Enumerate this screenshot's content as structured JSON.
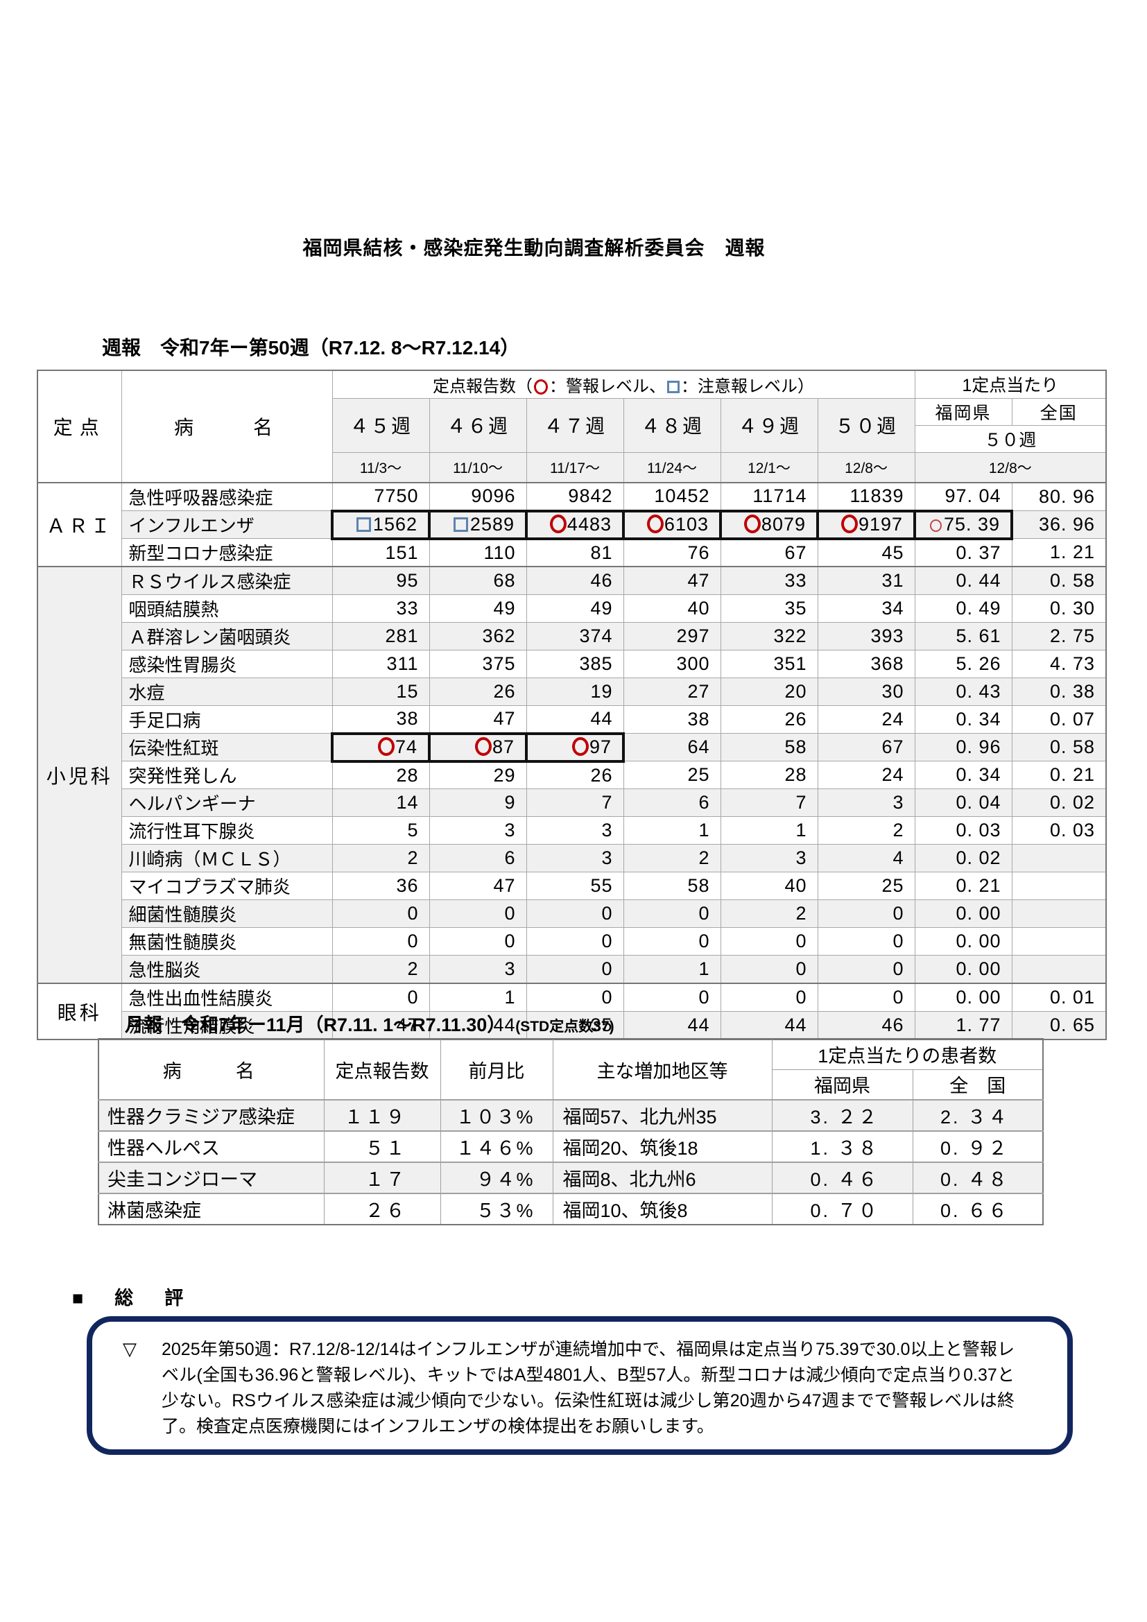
{
  "page_title": "福岡県結核・感染症発生動向調査解析委員会　週報",
  "weekly_table": {
    "subtitle": "週報　令和7年ー第50週（R7.12. 8～R7.12.14）",
    "header": {
      "sentinel": "定点",
      "disease": "病　　名",
      "counts_label": "定点報告数（",
      "legend_alert": "：警報レベル、",
      "legend_caution": "：注意報レベル）",
      "per_sentinel": "1定点当たり",
      "fukuoka": "福岡県",
      "national": "全国",
      "per_week": "５０週",
      "per_date": "12/8～",
      "weeks": [
        "４５週",
        "４６週",
        "４７週",
        "４８週",
        "４９週",
        "５０週"
      ],
      "dates": [
        "11/3～",
        "11/10～",
        "11/17～",
        "11/24～",
        "12/1～",
        "12/8～"
      ]
    },
    "legend_icons": {
      "alert": "red-circle",
      "caution": "blue-square"
    },
    "sections": [
      {
        "name": "ＡＲＩ",
        "rows": [
          {
            "name": "急性呼吸器感染症",
            "cells": [
              {
                "v": "7750"
              },
              {
                "v": "9096"
              },
              {
                "v": "9842"
              },
              {
                "v": "10452"
              },
              {
                "v": "11714"
              },
              {
                "v": "11839"
              },
              {
                "v": "97. 04"
              },
              {
                "v": "80. 96"
              }
            ]
          },
          {
            "name": "インフルエンザ",
            "cells": [
              {
                "v": "1562",
                "m": "square",
                "box": true
              },
              {
                "v": "2589",
                "m": "square",
                "box": true
              },
              {
                "v": "4483",
                "m": "circle",
                "box": true
              },
              {
                "v": "6103",
                "m": "circle",
                "box": true
              },
              {
                "v": "8079",
                "m": "circle",
                "box": true
              },
              {
                "v": "9197",
                "m": "circle",
                "box": true
              },
              {
                "v": "75. 39",
                "m": "circle-small",
                "box": true
              },
              {
                "v": "36. 96"
              }
            ]
          },
          {
            "name": "新型コロナ感染症",
            "cells": [
              {
                "v": "151"
              },
              {
                "v": "110"
              },
              {
                "v": "81"
              },
              {
                "v": "76"
              },
              {
                "v": "67"
              },
              {
                "v": "45"
              },
              {
                "v": "0. 37"
              },
              {
                "v": "1. 21"
              }
            ]
          }
        ]
      },
      {
        "name": "小児科",
        "rows": [
          {
            "name": "ＲＳウイルス感染症",
            "cells": [
              {
                "v": "95"
              },
              {
                "v": "68"
              },
              {
                "v": "46"
              },
              {
                "v": "47"
              },
              {
                "v": "33"
              },
              {
                "v": "31"
              },
              {
                "v": "0. 44"
              },
              {
                "v": "0. 58"
              }
            ]
          },
          {
            "name": "咽頭結膜熱",
            "cells": [
              {
                "v": "33"
              },
              {
                "v": "49"
              },
              {
                "v": "49"
              },
              {
                "v": "40"
              },
              {
                "v": "35"
              },
              {
                "v": "34"
              },
              {
                "v": "0. 49"
              },
              {
                "v": "0. 30"
              }
            ]
          },
          {
            "name": "Ａ群溶レン菌咽頭炎",
            "cells": [
              {
                "v": "281"
              },
              {
                "v": "362"
              },
              {
                "v": "374"
              },
              {
                "v": "297"
              },
              {
                "v": "322"
              },
              {
                "v": "393"
              },
              {
                "v": "5. 61"
              },
              {
                "v": "2. 75"
              }
            ]
          },
          {
            "name": "感染性胃腸炎",
            "cells": [
              {
                "v": "311"
              },
              {
                "v": "375"
              },
              {
                "v": "385"
              },
              {
                "v": "300"
              },
              {
                "v": "351"
              },
              {
                "v": "368"
              },
              {
                "v": "5. 26"
              },
              {
                "v": "4. 73"
              }
            ]
          },
          {
            "name": "水痘",
            "cells": [
              {
                "v": "15"
              },
              {
                "v": "26"
              },
              {
                "v": "19"
              },
              {
                "v": "27"
              },
              {
                "v": "20"
              },
              {
                "v": "30"
              },
              {
                "v": "0. 43"
              },
              {
                "v": "0. 38"
              }
            ]
          },
          {
            "name": "手足口病",
            "cells": [
              {
                "v": "38"
              },
              {
                "v": "47"
              },
              {
                "v": "44"
              },
              {
                "v": "38"
              },
              {
                "v": "26"
              },
              {
                "v": "24"
              },
              {
                "v": "0. 34"
              },
              {
                "v": "0. 07"
              }
            ]
          },
          {
            "name": "伝染性紅斑",
            "cells": [
              {
                "v": "74",
                "m": "circle",
                "box": true
              },
              {
                "v": "87",
                "m": "circle",
                "box": true
              },
              {
                "v": "97",
                "m": "circle",
                "box": true
              },
              {
                "v": "64"
              },
              {
                "v": "58"
              },
              {
                "v": "67"
              },
              {
                "v": "0. 96"
              },
              {
                "v": "0. 58"
              }
            ]
          },
          {
            "name": "突発性発しん",
            "cells": [
              {
                "v": "28"
              },
              {
                "v": "29"
              },
              {
                "v": "26"
              },
              {
                "v": "25"
              },
              {
                "v": "28"
              },
              {
                "v": "24"
              },
              {
                "v": "0. 34"
              },
              {
                "v": "0. 21"
              }
            ]
          },
          {
            "name": "ヘルパンギーナ",
            "cells": [
              {
                "v": "14"
              },
              {
                "v": "9"
              },
              {
                "v": "7"
              },
              {
                "v": "6"
              },
              {
                "v": "7"
              },
              {
                "v": "3"
              },
              {
                "v": "0. 04"
              },
              {
                "v": "0. 02"
              }
            ]
          },
          {
            "name": "流行性耳下腺炎",
            "cells": [
              {
                "v": "5"
              },
              {
                "v": "3"
              },
              {
                "v": "3"
              },
              {
                "v": "1"
              },
              {
                "v": "1"
              },
              {
                "v": "2"
              },
              {
                "v": "0. 03"
              },
              {
                "v": "0. 03"
              }
            ]
          },
          {
            "name": "川崎病（ＭＣＬＳ）",
            "cells": [
              {
                "v": "2"
              },
              {
                "v": "6"
              },
              {
                "v": "3"
              },
              {
                "v": "2"
              },
              {
                "v": "3"
              },
              {
                "v": "4"
              },
              {
                "v": "0. 02"
              },
              {
                "v": ""
              }
            ]
          },
          {
            "name": "マイコプラズマ肺炎",
            "cells": [
              {
                "v": "36"
              },
              {
                "v": "47"
              },
              {
                "v": "55"
              },
              {
                "v": "58"
              },
              {
                "v": "40"
              },
              {
                "v": "25"
              },
              {
                "v": "0. 21"
              },
              {
                "v": ""
              }
            ]
          },
          {
            "name": "細菌性髄膜炎",
            "cells": [
              {
                "v": "0"
              },
              {
                "v": "0"
              },
              {
                "v": "0"
              },
              {
                "v": "0"
              },
              {
                "v": "2"
              },
              {
                "v": "0"
              },
              {
                "v": "0. 00"
              },
              {
                "v": ""
              }
            ]
          },
          {
            "name": "無菌性髄膜炎",
            "cells": [
              {
                "v": "0"
              },
              {
                "v": "0"
              },
              {
                "v": "0"
              },
              {
                "v": "0"
              },
              {
                "v": "0"
              },
              {
                "v": "0"
              },
              {
                "v": "0. 00"
              },
              {
                "v": ""
              }
            ]
          },
          {
            "name": "急性脳炎",
            "cells": [
              {
                "v": "2"
              },
              {
                "v": "3"
              },
              {
                "v": "0"
              },
              {
                "v": "1"
              },
              {
                "v": "0"
              },
              {
                "v": "0"
              },
              {
                "v": "0. 00"
              },
              {
                "v": ""
              }
            ]
          }
        ]
      },
      {
        "name": "眼科",
        "rows": [
          {
            "name": "急性出血性結膜炎",
            "cells": [
              {
                "v": "0"
              },
              {
                "v": "1"
              },
              {
                "v": "0"
              },
              {
                "v": "0"
              },
              {
                "v": "0"
              },
              {
                "v": "0"
              },
              {
                "v": "0. 00"
              },
              {
                "v": "0. 01"
              }
            ]
          },
          {
            "name": "流行性角結膜炎",
            "cells": [
              {
                "v": "47"
              },
              {
                "v": "44"
              },
              {
                "v": "35"
              },
              {
                "v": "44"
              },
              {
                "v": "44"
              },
              {
                "v": "46"
              },
              {
                "v": "1. 77"
              },
              {
                "v": "0. 65"
              }
            ]
          }
        ]
      }
    ]
  },
  "monthly_table": {
    "subtitle": "月報　令和7年ー11月（R7.11. 1～R7.11.30）",
    "subtitle_note": "(STD定点数37)",
    "header": {
      "disease": "病　　名",
      "count": "定点報告数",
      "mom": "前月比",
      "areas": "主な増加地区等",
      "per_sentinel": "1定点当たりの患者数",
      "fukuoka": "福岡県",
      "national": "全　国"
    },
    "rows": [
      {
        "name": "性器クラミジア感染症",
        "count": "１１９",
        "mom": "１０３%",
        "areas": "福岡57、北九州35",
        "fukuoka": "3. ２２",
        "national": "2. ３４"
      },
      {
        "name": "性器ヘルペス",
        "count": "５１",
        "mom": "１４６%",
        "areas": "福岡20、筑後18",
        "fukuoka": "1. ３８",
        "national": "0. ９２"
      },
      {
        "name": "尖圭コンジローマ",
        "count": "１７",
        "mom": "９４%",
        "areas": "福岡8、北九州6",
        "fukuoka": "0. ４６",
        "national": "0. ４８"
      },
      {
        "name": "淋菌感染症",
        "count": "２６",
        "mom": "５３%",
        "areas": "福岡10、筑後8",
        "fukuoka": "0. ７０",
        "national": "0. ６６"
      }
    ]
  },
  "summary": {
    "heading": "■　総　評",
    "bullet": "▽",
    "lines": [
      "2025年第50週：R7.12/8-12/14はインフルエンザが連続増加中で、福岡県は定点当り75.39で30.0以上と",
      "警報レベル(全国も36.96と警報レベル)、キットではA型4801人、B型57人。新型コロナは減少傾向で定",
      "点当り0.37と少ない。RSウイルス感染症は減少傾向で少ない。伝染性紅斑は減少し第20週から47週まで",
      "で警報レベルは終了。検査定点医療機関にはインフルエンザの検体提出をお願いします。"
    ]
  }
}
